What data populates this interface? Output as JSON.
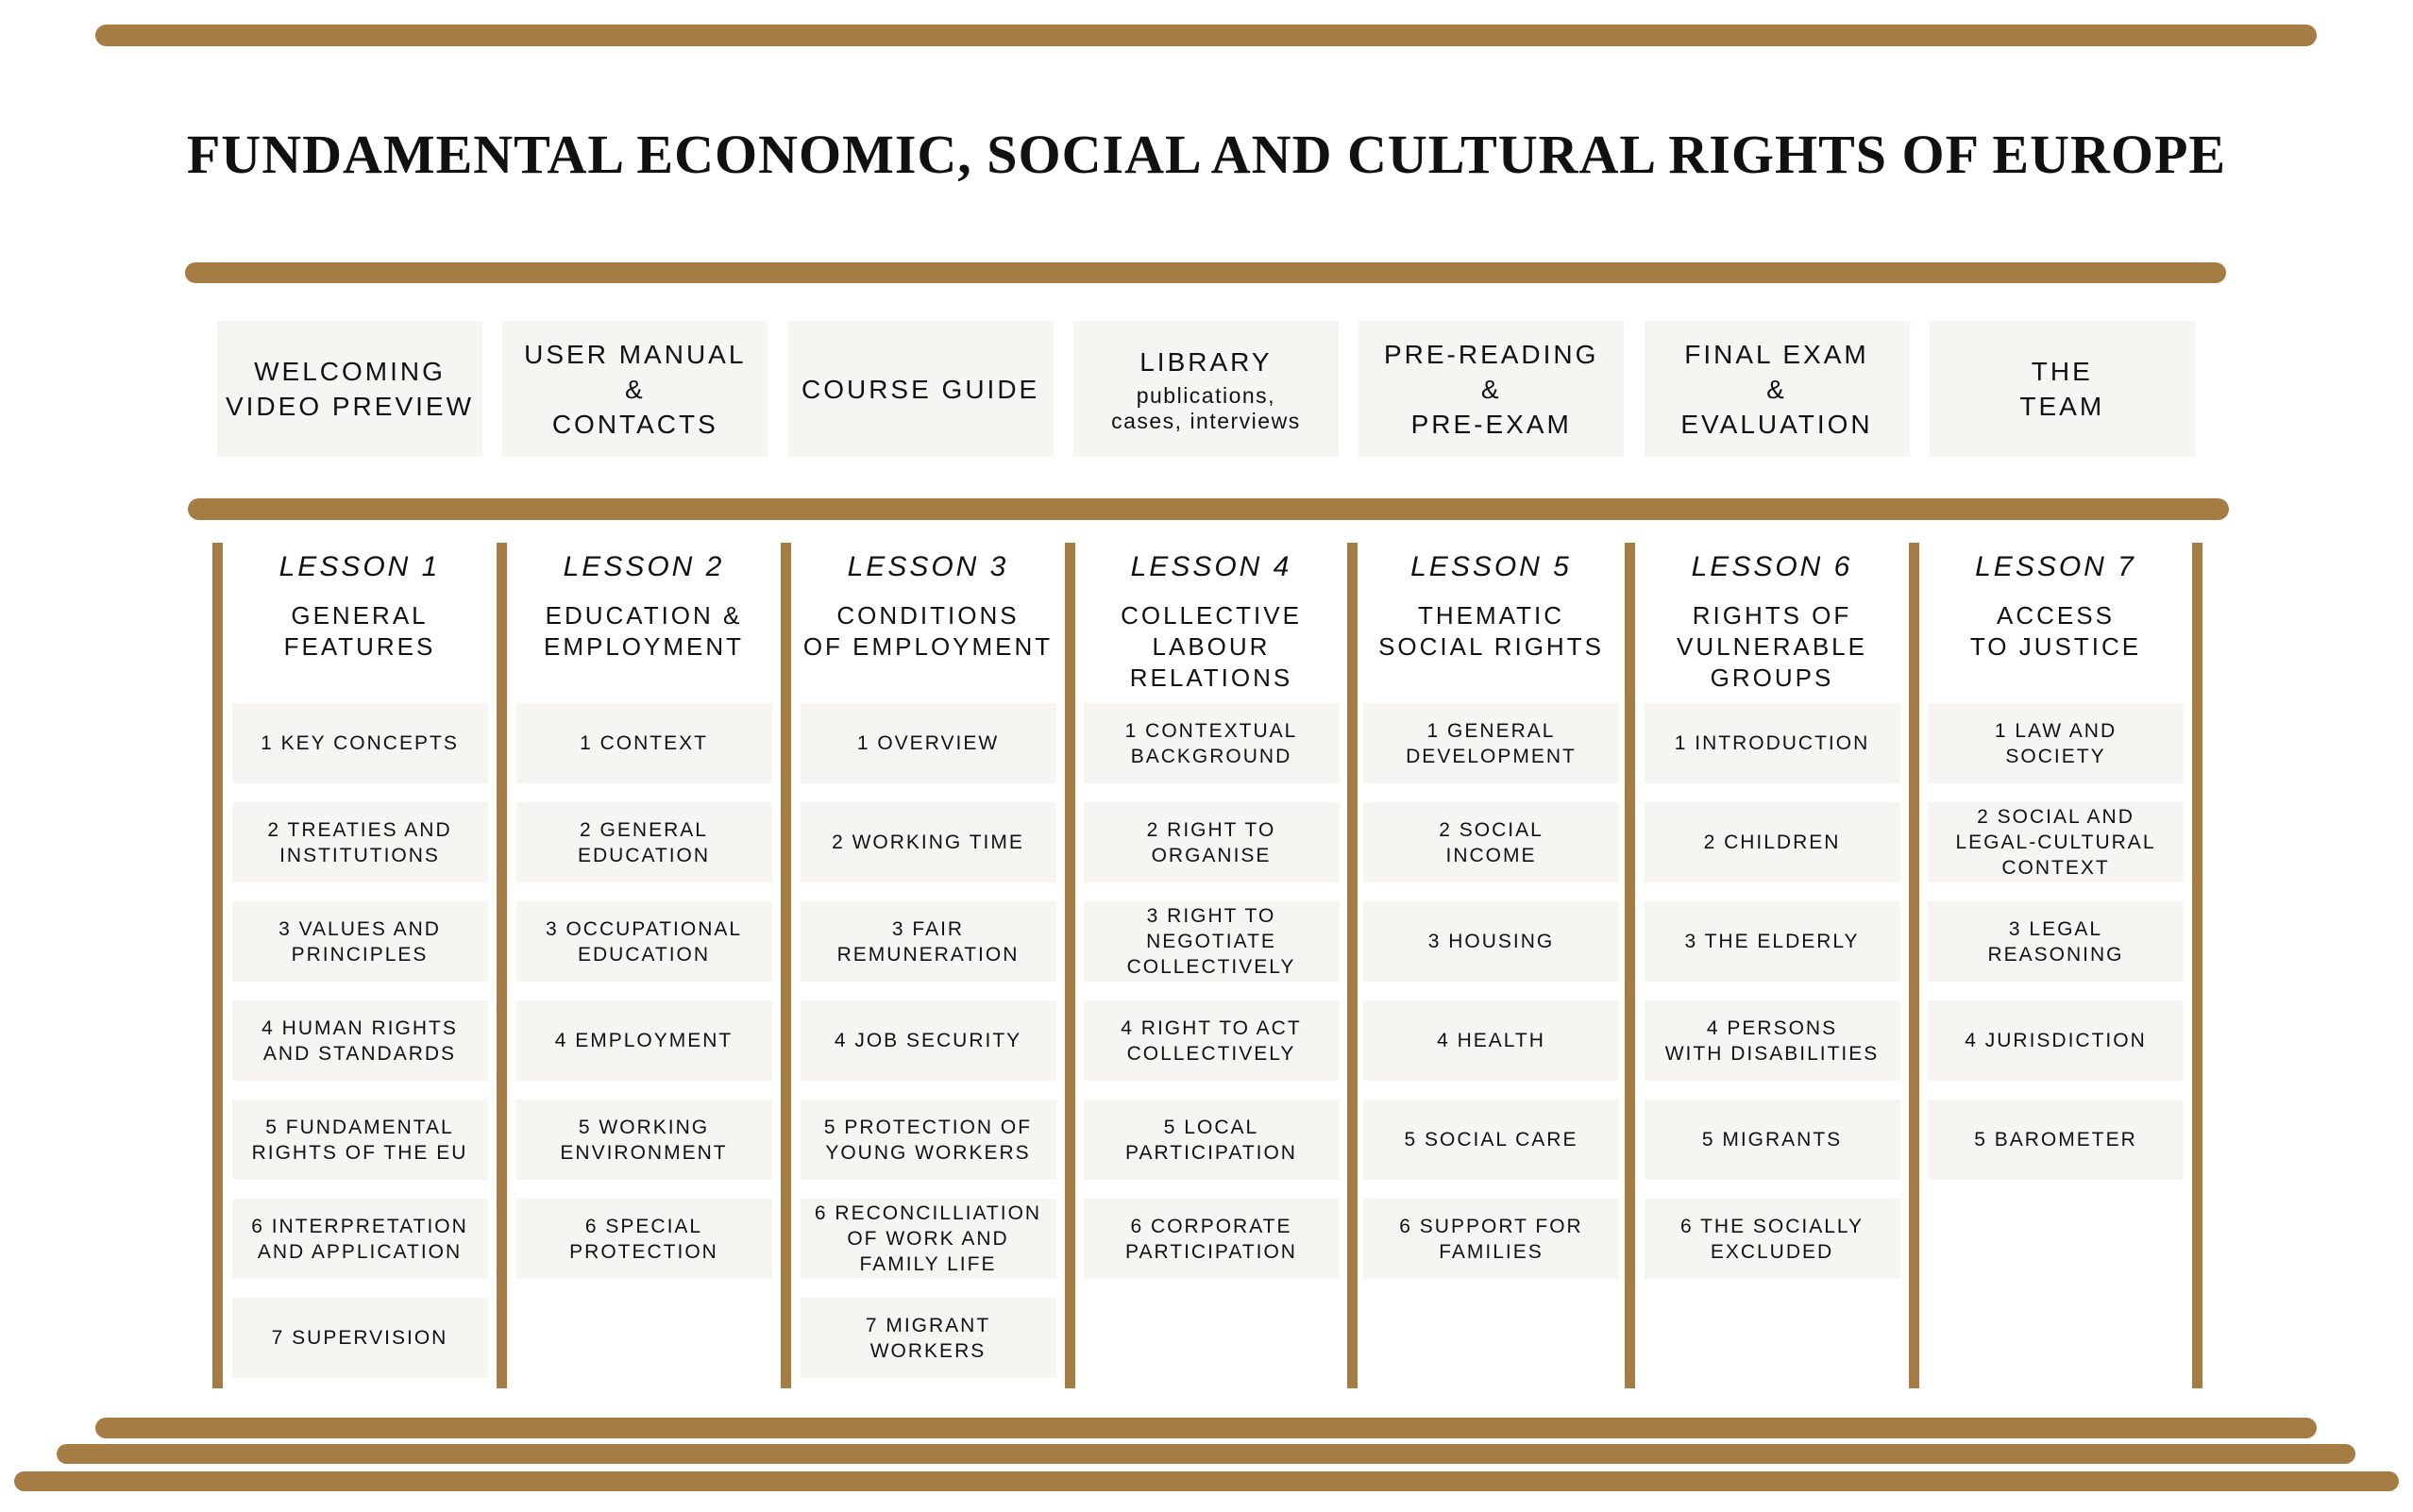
{
  "title": "FUNDAMENTAL ECONOMIC, SOCIAL AND CULTURAL RIGHTS OF EUROPE",
  "colors": {
    "accent": "#a67c45",
    "tile": "#f7f5f1",
    "text": "#111111"
  },
  "top_buttons": [
    {
      "label": "WELCOMING\nVIDEO PREVIEW"
    },
    {
      "label": "USER MANUAL\n&\nCONTACTS"
    },
    {
      "label": "COURSE GUIDE"
    },
    {
      "label": "LIBRARY",
      "sub": "publications,\ncases, interviews"
    },
    {
      "label": "PRE-READING\n&\nPRE-EXAM"
    },
    {
      "label": "FINAL EXAM\n&\nEVALUATION"
    },
    {
      "label": "THE\nTEAM"
    }
  ],
  "lessons": [
    {
      "heading": "LESSON 1",
      "title": "GENERAL\nFEATURES",
      "items": [
        "1 KEY CONCEPTS",
        "2 TREATIES AND\nINSTITUTIONS",
        "3 VALUES AND\nPRINCIPLES",
        "4 HUMAN RIGHTS\nAND STANDARDS",
        "5 FUNDAMENTAL\nRIGHTS OF THE EU",
        "6 INTERPRETATION\nAND APPLICATION",
        "7 SUPERVISION"
      ]
    },
    {
      "heading": "LESSON 2",
      "title": "EDUCATION &\nEMPLOYMENT",
      "items": [
        "1 CONTEXT",
        "2 GENERAL\nEDUCATION",
        "3 OCCUPATIONAL\nEDUCATION",
        "4 EMPLOYMENT",
        "5 WORKING\nENVIRONMENT",
        "6 SPECIAL\nPROTECTION"
      ]
    },
    {
      "heading": "LESSON 3",
      "title": "CONDITIONS\nOF EMPLOYMENT",
      "items": [
        "1 OVERVIEW",
        "2 WORKING TIME",
        "3 FAIR\nREMUNERATION",
        "4 JOB SECURITY",
        "5 PROTECTION OF\nYOUNG WORKERS",
        "6 RECONCILLIATION\nOF WORK AND\nFAMILY LIFE",
        "7 MIGRANT\nWORKERS"
      ]
    },
    {
      "heading": "LESSON 4",
      "title": "COLLECTIVE\nLABOUR RELATIONS",
      "items": [
        "1 CONTEXTUAL\nBACKGROUND",
        "2 RIGHT TO\nORGANISE",
        "3 RIGHT TO\nNEGOTIATE\nCOLLECTIVELY",
        "4 RIGHT TO ACT\nCOLLECTIVELY",
        "5 LOCAL\nPARTICIPATION",
        "6 CORPORATE\nPARTICIPATION"
      ]
    },
    {
      "heading": "LESSON 5",
      "title": "THEMATIC\nSOCIAL RIGHTS",
      "items": [
        "1 GENERAL\nDEVELOPMENT",
        "2 SOCIAL\nINCOME",
        "3 HOUSING",
        "4 HEALTH",
        "5 SOCIAL CARE",
        "6 SUPPORT FOR\nFAMILIES"
      ]
    },
    {
      "heading": "LESSON 6",
      "title": "RIGHTS OF\nVULNERABLE\nGROUPS",
      "items": [
        "1 INTRODUCTION",
        "2 CHILDREN",
        "3 THE ELDERLY",
        "4 PERSONS\nWITH DISABILITIES",
        "5 MIGRANTS",
        "6 THE SOCIALLY\nEXCLUDED"
      ]
    },
    {
      "heading": "LESSON 7",
      "title": "ACCESS\nTO JUSTICE",
      "items": [
        "1 LAW AND\nSOCIETY",
        "2 SOCIAL AND\nLEGAL-CULTURAL\nCONTEXT",
        "3 LEGAL\nREASONING",
        "4 JURISDICTION",
        "5 BAROMETER"
      ]
    }
  ]
}
